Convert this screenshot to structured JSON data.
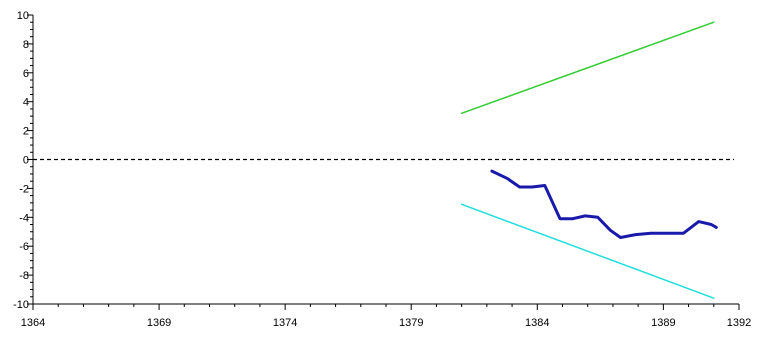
{
  "chart_data": {
    "type": "line",
    "title": "",
    "xlabel": "",
    "ylabel": "",
    "xlim": [
      1364,
      1392
    ],
    "ylim": [
      -10,
      10
    ],
    "x_ticks": [
      1364,
      1369,
      1374,
      1379,
      1384,
      1389,
      1392
    ],
    "x_tick_labels": [
      "1364",
      "1369",
      "1374",
      "1379",
      "1384",
      "1389",
      "1392"
    ],
    "y_ticks": [
      -10,
      -8,
      -6,
      -4,
      -2,
      0,
      2,
      4,
      6,
      8,
      10
    ],
    "y_tick_labels": [
      "-10",
      "-8",
      "-6",
      "-4",
      "-2",
      "0",
      "2",
      "4",
      "6",
      "8",
      "10"
    ],
    "grid": false,
    "reference_line": {
      "y": 0,
      "style": "dashed",
      "color": "#000000"
    },
    "series": [
      {
        "color": "#33cc33",
        "stroke_width": 1.5,
        "x": [
          1381,
          1391
        ],
        "y": [
          3.2,
          9.5
        ]
      },
      {
        "color": "#22dddd",
        "stroke_width": 1.5,
        "x": [
          1381,
          1391
        ],
        "y": [
          -3.1,
          -9.6
        ]
      },
      {
        "color": "#1a1aaa",
        "stroke_width": 3,
        "x": [
          1382.2,
          1382.8,
          1383.3,
          1383.8,
          1384.3,
          1384.9,
          1385.4,
          1385.9,
          1386.4,
          1386.9,
          1387.3,
          1387.9,
          1388.5,
          1389.2,
          1389.8,
          1390.4,
          1390.9,
          1391.1
        ],
        "y": [
          -0.8,
          -1.3,
          -1.9,
          -1.9,
          -1.8,
          -4.1,
          -4.1,
          -3.9,
          -4.0,
          -4.9,
          -5.4,
          -5.2,
          -5.1,
          -5.1,
          -5.1,
          -4.3,
          -4.5,
          -4.7
        ]
      }
    ]
  }
}
